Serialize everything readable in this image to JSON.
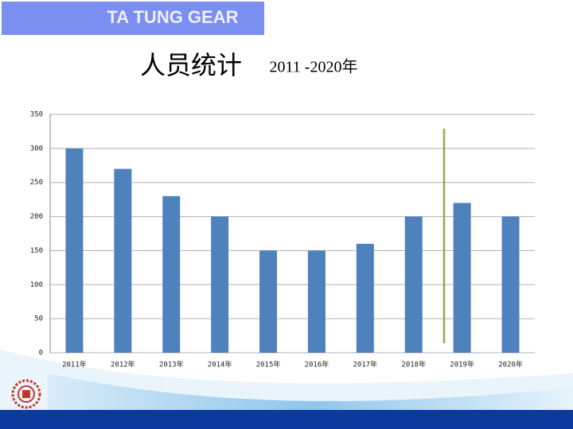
{
  "header": {
    "title": "TA TUNG GEAR"
  },
  "chart_data": {
    "type": "bar",
    "title": "人员统计",
    "subtitle": "2011 -2020年",
    "categories": [
      "2011年",
      "2012年",
      "2013年",
      "2014年",
      "2015年",
      "2016年",
      "2017年",
      "2018年",
      "2019年",
      "2020年"
    ],
    "values": [
      300,
      270,
      230,
      200,
      150,
      150,
      160,
      200,
      220,
      200
    ],
    "color": "#4f81bd",
    "ylim": [
      0,
      350
    ],
    "yticks": [
      0,
      50,
      100,
      150,
      200,
      250,
      300,
      350
    ],
    "grid": true
  }
}
